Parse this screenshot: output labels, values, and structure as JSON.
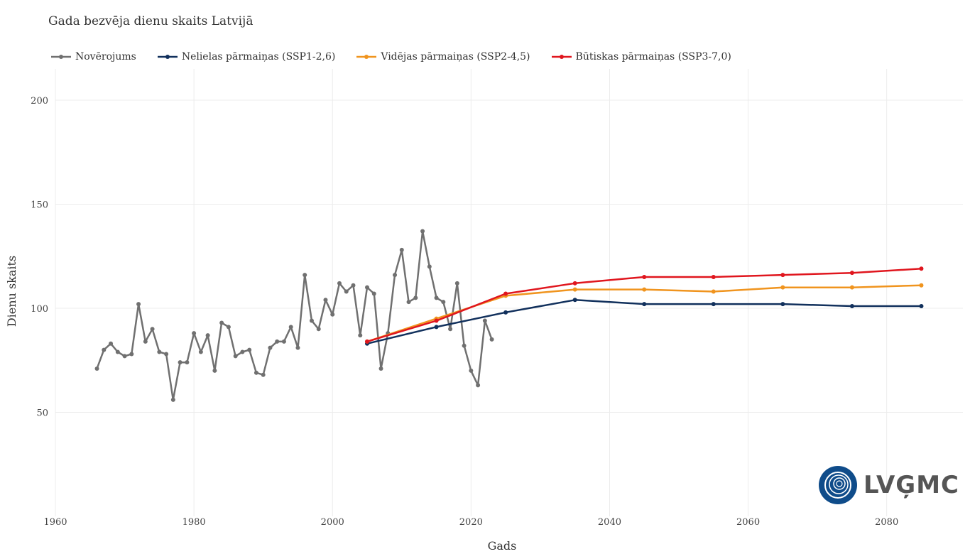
{
  "chart_data": {
    "type": "line",
    "title": "Gada bezvēja dienu skaits Latvijā",
    "xlabel": "Gads",
    "ylabel": "Dienu skaits",
    "xlim": [
      1960,
      2091
    ],
    "ylim": [
      0,
      215
    ],
    "xticks": [
      1960,
      1980,
      2000,
      2020,
      2040,
      2060,
      2080
    ],
    "yticks": [
      50,
      100,
      150,
      200
    ],
    "grid": true,
    "legend_position": "top-left",
    "series": [
      {
        "name": "Novērojums",
        "color": "#707070",
        "x": [
          1966,
          1967,
          1968,
          1969,
          1970,
          1971,
          1972,
          1973,
          1974,
          1975,
          1976,
          1977,
          1978,
          1979,
          1980,
          1981,
          1982,
          1983,
          1984,
          1985,
          1986,
          1987,
          1988,
          1989,
          1990,
          1991,
          1992,
          1993,
          1994,
          1995,
          1996,
          1997,
          1998,
          1999,
          2000,
          2001,
          2002,
          2003,
          2004,
          2005,
          2006,
          2007,
          2008,
          2009,
          2010,
          2011,
          2012,
          2013,
          2014,
          2015,
          2016,
          2017,
          2018,
          2019,
          2020,
          2021,
          2022,
          2023
        ],
        "y": [
          71,
          80,
          83,
          79,
          77,
          78,
          102,
          84,
          90,
          79,
          78,
          56,
          74,
          74,
          88,
          79,
          87,
          70,
          93,
          91,
          77,
          79,
          80,
          69,
          68,
          81,
          84,
          84,
          91,
          81,
          116,
          94,
          90,
          104,
          97,
          112,
          108,
          111,
          87,
          110,
          107,
          71,
          88,
          116,
          128,
          103,
          105,
          137,
          120,
          105,
          103,
          90,
          112,
          82,
          70,
          63,
          94,
          85
        ]
      },
      {
        "name": "Nelielas pārmaiņas (SSP1-2,6)",
        "color": "#11305c",
        "x": [
          2005,
          2015,
          2025,
          2035,
          2045,
          2055,
          2065,
          2075,
          2085
        ],
        "y": [
          83,
          91,
          98,
          104,
          102,
          102,
          102,
          101,
          101
        ]
      },
      {
        "name": "Vidējas pārmaiņas (SSP2-4,5)",
        "color": "#f0941e",
        "x": [
          2005,
          2015,
          2025,
          2035,
          2045,
          2055,
          2065,
          2075,
          2085
        ],
        "y": [
          84,
          95,
          106,
          109,
          109,
          108,
          110,
          110,
          111
        ]
      },
      {
        "name": "Būtiskas pārmaiņas (SSP3-7,0)",
        "color": "#e0161e",
        "x": [
          2005,
          2015,
          2025,
          2035,
          2045,
          2055,
          2065,
          2075,
          2085
        ],
        "y": [
          84,
          94,
          107,
          112,
          115,
          115,
          116,
          117,
          119
        ]
      }
    ]
  },
  "logo": {
    "text": "LVĢMC",
    "color": "#0f4c8a"
  }
}
